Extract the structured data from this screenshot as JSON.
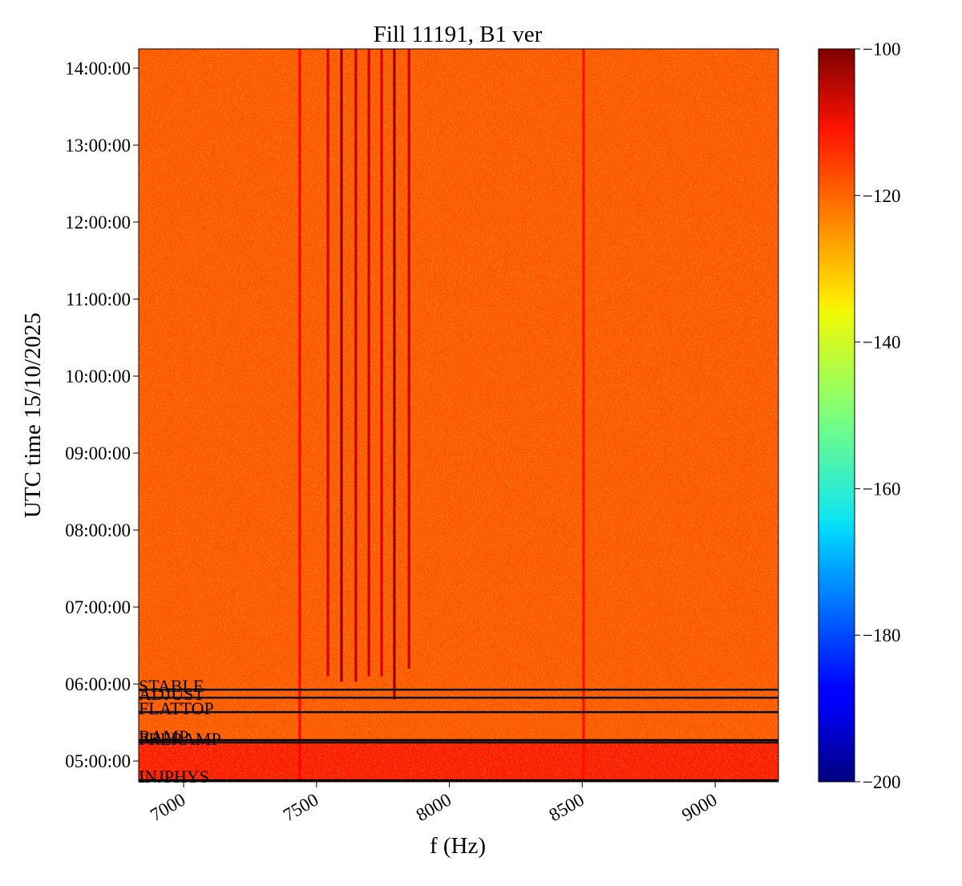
{
  "chart_data": {
    "type": "spectrogram",
    "title": "Fill 11191, B1 ver",
    "x_label": "f (Hz)",
    "y_label": "UTC time 15/10/2025",
    "xlim": [
      6831,
      9238
    ],
    "xticks": [
      7000,
      7500,
      8000,
      8500,
      9000
    ],
    "ylim": [
      4.73,
      14.25
    ],
    "yticks": [
      {
        "value": 5,
        "label": "05:00:00"
      },
      {
        "value": 6,
        "label": "06:00:00"
      },
      {
        "value": 7,
        "label": "07:00:00"
      },
      {
        "value": 8,
        "label": "08:00:00"
      },
      {
        "value": 9,
        "label": "09:00:00"
      },
      {
        "value": 10,
        "label": "10:00:00"
      },
      {
        "value": 11,
        "label": "11:00:00"
      },
      {
        "value": 12,
        "label": "12:00:00"
      },
      {
        "value": 13,
        "label": "13:00:00"
      },
      {
        "value": 14,
        "label": "14:00:00"
      }
    ],
    "colormap": "jet",
    "clim": [
      -200,
      -100
    ],
    "cticks": [
      {
        "value": -100,
        "label": "−100"
      },
      {
        "value": -120,
        "label": "−120"
      },
      {
        "value": -140,
        "label": "−140"
      },
      {
        "value": -160,
        "label": "−160"
      },
      {
        "value": -180,
        "label": "−180"
      },
      {
        "value": -200,
        "label": "−200"
      }
    ],
    "background": [
      {
        "start_time": 4.73,
        "end_time": 5.27,
        "level": -115
      },
      {
        "start_time": 5.27,
        "end_time": 14.25,
        "level": -121
      }
    ],
    "spectral_lines": [
      {
        "f": 7437,
        "start_time": 4.73,
        "level": -113
      },
      {
        "f": 7543,
        "start_time": 6.1,
        "level": -109
      },
      {
        "f": 7594,
        "start_time": 6.03,
        "level": -102
      },
      {
        "f": 7648,
        "start_time": 6.03,
        "level": -107
      },
      {
        "f": 7697,
        "start_time": 6.1,
        "level": -108
      },
      {
        "f": 7745,
        "start_time": 6.1,
        "level": -109
      },
      {
        "f": 7793,
        "start_time": 5.8,
        "level": -102
      },
      {
        "f": 7848,
        "start_time": 6.2,
        "level": -107
      },
      {
        "f": 8505,
        "start_time": 4.73,
        "level": -114
      }
    ],
    "modes": [
      {
        "label": "STABLE",
        "time": 5.927
      },
      {
        "label": "ADJUST",
        "time": 5.823
      },
      {
        "label": "FLATTOP",
        "time": 5.635
      },
      {
        "label": "RAMP",
        "time": 5.271
      },
      {
        "label": "PRERAMP",
        "time": 5.24
      },
      {
        "label": "INJPHYS",
        "time": 4.75
      }
    ]
  }
}
